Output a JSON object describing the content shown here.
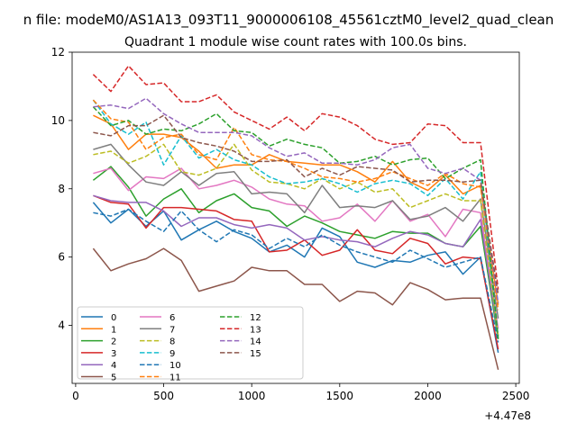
{
  "figure": {
    "suptitle": "n file: modeM0/AS1A13_093T11_9000006108_45561cztM0_level2_quad_clean",
    "title": "Quadrant 1 module wise count rates with 100.0s bins.",
    "offset_label": "+4.47e8"
  },
  "chart_data": {
    "type": "line",
    "title": "Quadrant 1 module wise count rates with 100.0s bins.",
    "xlabel": "",
    "ylabel": "",
    "x_offset": "+4.47e8",
    "xlim": [
      -20,
      2520
    ],
    "ylim": [
      2.3,
      12.0
    ],
    "x_ticks": [
      0,
      500,
      1000,
      1500,
      2000,
      2500
    ],
    "y_ticks": [
      4,
      6,
      8,
      10,
      12
    ],
    "x": [
      100,
      200,
      300,
      400,
      500,
      600,
      700,
      800,
      900,
      1000,
      1100,
      1200,
      1300,
      1400,
      1500,
      1600,
      1700,
      1800,
      1900,
      2000,
      2100,
      2200,
      2300,
      2400
    ],
    "legend_placement": "lower-left",
    "legend_columns": 3,
    "series": [
      {
        "name": "0",
        "color": "#1f77b4",
        "style": "solid",
        "values": [
          7.6,
          7.0,
          7.4,
          6.9,
          7.35,
          6.5,
          6.8,
          7.05,
          6.75,
          6.55,
          6.15,
          6.35,
          6.0,
          6.85,
          6.6,
          5.85,
          5.7,
          5.9,
          5.85,
          6.05,
          6.15,
          5.5,
          6.0,
          3.2
        ]
      },
      {
        "name": "1",
        "color": "#ff7f0e",
        "style": "solid",
        "values": [
          10.15,
          9.9,
          9.15,
          9.6,
          9.6,
          9.5,
          9.1,
          8.6,
          8.7,
          8.7,
          9.0,
          8.8,
          8.75,
          8.7,
          8.7,
          8.5,
          8.2,
          8.8,
          8.2,
          7.95,
          8.4,
          7.85,
          8.1,
          4.6
        ]
      },
      {
        "name": "2",
        "color": "#2ca02c",
        "style": "solid",
        "values": [
          8.25,
          8.65,
          8.05,
          7.2,
          7.7,
          8.0,
          7.3,
          7.65,
          7.85,
          7.45,
          7.35,
          6.9,
          7.2,
          7.0,
          6.75,
          6.65,
          6.55,
          6.75,
          6.7,
          6.7,
          6.4,
          6.3,
          6.9,
          3.6
        ]
      },
      {
        "name": "3",
        "color": "#d62728",
        "style": "solid",
        "values": [
          7.8,
          7.6,
          7.55,
          6.85,
          7.45,
          7.45,
          7.4,
          7.35,
          7.1,
          7.05,
          6.15,
          6.2,
          6.5,
          6.05,
          6.2,
          6.8,
          6.2,
          6.1,
          6.55,
          6.4,
          5.8,
          6.0,
          5.95,
          3.3
        ]
      },
      {
        "name": "4",
        "color": "#9467bd",
        "style": "solid",
        "values": [
          7.8,
          7.65,
          7.6,
          7.6,
          7.35,
          6.9,
          7.15,
          7.15,
          6.95,
          6.85,
          6.95,
          6.85,
          6.5,
          6.6,
          6.5,
          6.45,
          6.3,
          6.55,
          6.75,
          6.65,
          6.4,
          6.3,
          7.1,
          3.7
        ]
      },
      {
        "name": "5",
        "color": "#8c564b",
        "style": "solid",
        "values": [
          6.25,
          5.6,
          5.8,
          5.95,
          6.25,
          5.9,
          5.0,
          5.15,
          5.3,
          5.7,
          5.6,
          5.6,
          5.2,
          5.2,
          4.7,
          5.0,
          4.95,
          4.6,
          5.25,
          5.05,
          4.75,
          4.8,
          4.8,
          2.7
        ]
      },
      {
        "name": "6",
        "color": "#e377c2",
        "style": "solid",
        "values": [
          8.45,
          8.6,
          7.95,
          8.35,
          8.3,
          8.6,
          8.0,
          8.1,
          8.25,
          8.05,
          7.7,
          7.55,
          7.5,
          7.05,
          7.15,
          7.55,
          7.05,
          7.65,
          7.05,
          7.25,
          6.6,
          7.4,
          7.3,
          3.9
        ]
      },
      {
        "name": "7",
        "color": "#7f7f7f",
        "style": "solid",
        "values": [
          9.15,
          9.3,
          8.7,
          8.2,
          8.1,
          8.5,
          8.1,
          8.45,
          8.5,
          7.85,
          7.9,
          7.85,
          7.3,
          8.1,
          7.45,
          7.5,
          7.45,
          7.65,
          7.1,
          7.2,
          7.45,
          7.05,
          7.7,
          4.2
        ]
      },
      {
        "name": "8",
        "color": "#bcbd22",
        "style": "dashed",
        "values": [
          9.0,
          9.1,
          8.75,
          8.95,
          9.3,
          8.5,
          8.4,
          8.6,
          9.3,
          8.55,
          8.2,
          8.15,
          8.0,
          8.3,
          8.0,
          8.2,
          7.9,
          8.0,
          7.45,
          7.65,
          7.85,
          7.65,
          7.65,
          3.7
        ]
      },
      {
        "name": "9",
        "color": "#17becf",
        "style": "dashed",
        "values": [
          10.6,
          9.9,
          9.6,
          9.95,
          8.7,
          9.55,
          8.9,
          9.15,
          8.85,
          8.7,
          8.35,
          8.15,
          8.2,
          8.3,
          8.15,
          7.9,
          8.15,
          8.25,
          8.15,
          7.8,
          8.3,
          7.7,
          8.5,
          3.65
        ]
      },
      {
        "name": "10",
        "color": "#1f77b4",
        "style": "dashed",
        "values": [
          7.3,
          7.2,
          7.4,
          7.05,
          6.75,
          7.35,
          6.8,
          6.45,
          6.8,
          6.65,
          6.25,
          6.55,
          6.3,
          6.65,
          6.35,
          6.15,
          6.0,
          5.85,
          6.2,
          5.95,
          5.7,
          5.85,
          6.0,
          3.5
        ]
      },
      {
        "name": "11",
        "color": "#ff7f0e",
        "style": "dashed",
        "values": [
          10.6,
          10.05,
          9.95,
          9.15,
          9.5,
          9.6,
          9.0,
          8.85,
          9.8,
          9.0,
          8.85,
          8.8,
          8.6,
          8.35,
          8.3,
          8.2,
          8.3,
          8.5,
          8.3,
          8.1,
          8.45,
          8.15,
          8.05,
          4.45
        ]
      },
      {
        "name": "12",
        "color": "#2ca02c",
        "style": "dashed",
        "values": [
          10.4,
          9.85,
          10.0,
          9.6,
          9.75,
          9.7,
          9.9,
          10.2,
          9.7,
          9.65,
          9.25,
          9.45,
          9.3,
          9.2,
          8.75,
          8.8,
          8.95,
          8.7,
          8.85,
          8.9,
          8.3,
          8.6,
          8.85,
          3.6
        ]
      },
      {
        "name": "13",
        "color": "#d62728",
        "style": "dashed",
        "values": [
          11.35,
          10.85,
          11.6,
          11.05,
          11.1,
          10.55,
          10.55,
          10.75,
          10.25,
          10.0,
          9.75,
          10.1,
          9.7,
          10.2,
          10.1,
          9.85,
          9.45,
          9.3,
          9.35,
          9.9,
          9.85,
          9.35,
          9.35,
          5.05
        ]
      },
      {
        "name": "14",
        "color": "#9467bd",
        "style": "dashed",
        "values": [
          10.4,
          10.45,
          10.35,
          10.65,
          10.2,
          9.9,
          9.65,
          9.65,
          9.65,
          9.55,
          9.2,
          8.95,
          9.05,
          8.75,
          8.75,
          8.7,
          8.85,
          9.2,
          9.3,
          8.6,
          8.45,
          8.6,
          8.25,
          4.65
        ]
      },
      {
        "name": "15",
        "color": "#8c564b",
        "style": "dashed",
        "values": [
          9.65,
          9.55,
          9.85,
          9.85,
          10.15,
          9.5,
          9.35,
          9.25,
          9.1,
          8.8,
          8.8,
          8.85,
          8.35,
          8.6,
          8.4,
          8.65,
          8.6,
          8.55,
          8.2,
          8.25,
          8.25,
          8.2,
          8.25,
          4.9
        ]
      }
    ]
  }
}
